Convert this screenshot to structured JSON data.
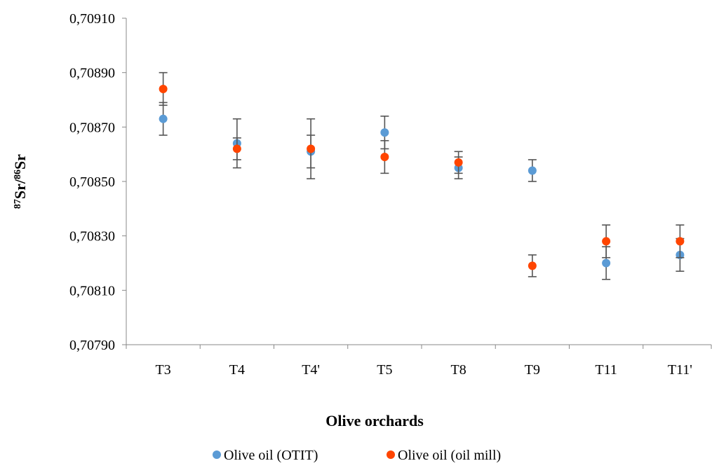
{
  "chart_data": {
    "type": "scatter",
    "categories": [
      "T3",
      "T4",
      "T4'",
      "T5",
      "T8",
      "T9",
      "T11",
      "T11'"
    ],
    "series": [
      {
        "name": "Olive oil (OTIT)",
        "color": "#5B9BD5",
        "values": [
          0.70873,
          0.70864,
          0.70861,
          0.70868,
          0.70855,
          0.70854,
          0.7082,
          0.70823
        ],
        "errors": [
          6e-05,
          9e-05,
          6e-05,
          6e-05,
          4e-05,
          4e-05,
          6e-05,
          6e-05
        ]
      },
      {
        "name": "Olive oil (oil mill)",
        "color": "#FF4500",
        "values": [
          0.70884,
          0.70862,
          0.70862,
          0.70859,
          0.70857,
          0.70819,
          0.70828,
          0.70828
        ],
        "errors": [
          6e-05,
          4e-05,
          0.00011,
          6e-05,
          4e-05,
          4e-05,
          6e-05,
          6e-05
        ]
      }
    ],
    "xlabel": "Olive orchards",
    "ylabel": "87Sr/86Sr",
    "ylabel_parts": {
      "sup1": "87",
      "base1": "Sr/",
      "sup2": "86",
      "base2": "Sr"
    },
    "ylim": [
      0.7079,
      0.7091
    ],
    "yticks": [
      0.7079,
      0.7081,
      0.7083,
      0.7085,
      0.7087,
      0.7089,
      0.7091
    ],
    "ytick_labels": [
      "0,70790",
      "0,70810",
      "0,70830",
      "0,70850",
      "0,70870",
      "0,70890",
      "0,70910"
    ],
    "grid": false,
    "legend_position": "bottom"
  }
}
